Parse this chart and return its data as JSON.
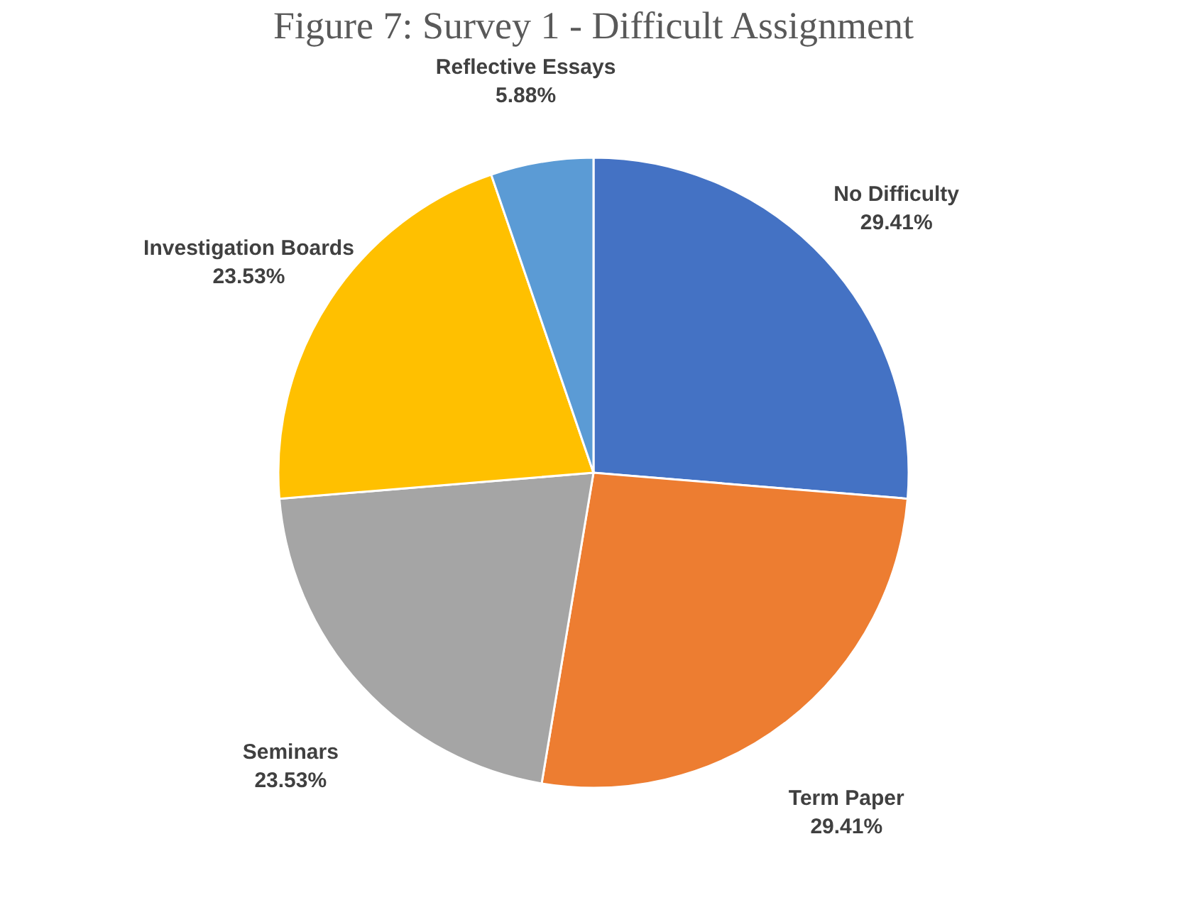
{
  "chart_data": {
    "type": "pie",
    "title": "Figure 7: Survey 1 - Difficult Assignment",
    "categories": [
      "No Difficulty",
      "Term Paper",
      "Seminars",
      "Investigation Boards",
      "Reflective Essays"
    ],
    "values": [
      29.41,
      29.41,
      23.53,
      23.53,
      5.88
    ],
    "value_labels": [
      "29.41%",
      "29.41%",
      "23.53%",
      "23.53%",
      "5.88%"
    ],
    "colors": [
      "#4472c4",
      "#ed7d31",
      "#a5a5a5",
      "#ffc000",
      "#5b9bd5"
    ],
    "legend": false
  }
}
